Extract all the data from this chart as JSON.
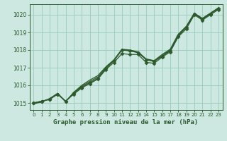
{
  "background_color": "#cce8e0",
  "grid_color": "#99ccbb",
  "line_color": "#2d5a2d",
  "title": "Graphe pression niveau de la mer (hPa)",
  "ylabel_ticks": [
    1015,
    1016,
    1017,
    1018,
    1019,
    1020
  ],
  "xlim": [
    -0.5,
    23.5
  ],
  "ylim": [
    1014.6,
    1020.6
  ],
  "x": [
    0,
    1,
    2,
    3,
    4,
    5,
    6,
    7,
    8,
    9,
    10,
    11,
    12,
    13,
    14,
    15,
    16,
    17,
    18,
    19,
    20,
    21,
    22,
    23
  ],
  "line_main": [
    1015.0,
    1015.1,
    1015.2,
    1015.5,
    1015.1,
    1015.5,
    1015.85,
    1016.1,
    1016.35,
    1016.9,
    1017.3,
    1017.8,
    1017.75,
    1017.75,
    1017.3,
    1017.25,
    1017.6,
    1017.9,
    1018.75,
    1019.2,
    1020.0,
    1019.7,
    1020.0,
    1020.3
  ],
  "line_upper": [
    1015.0,
    1015.1,
    1015.2,
    1015.5,
    1015.1,
    1015.55,
    1015.9,
    1016.15,
    1016.4,
    1016.95,
    1017.4,
    1018.0,
    1017.95,
    1017.85,
    1017.45,
    1017.35,
    1017.65,
    1017.95,
    1018.8,
    1019.3,
    1020.05,
    1019.75,
    1020.05,
    1020.35
  ],
  "line_smooth1": [
    1014.95,
    1015.05,
    1015.25,
    1015.55,
    1015.08,
    1015.6,
    1016.0,
    1016.3,
    1016.55,
    1017.05,
    1017.45,
    1018.05,
    1018.0,
    1017.9,
    1017.5,
    1017.4,
    1017.75,
    1018.05,
    1018.9,
    1019.35,
    1020.1,
    1019.8,
    1020.1,
    1020.4
  ],
  "line_smooth2": [
    1014.98,
    1015.08,
    1015.22,
    1015.52,
    1015.06,
    1015.58,
    1015.95,
    1016.22,
    1016.47,
    1017.0,
    1017.42,
    1018.02,
    1017.97,
    1017.87,
    1017.47,
    1017.37,
    1017.7,
    1018.0,
    1018.85,
    1019.32,
    1020.07,
    1019.77,
    1020.07,
    1020.37
  ],
  "marker": "D",
  "marker_size": 2.5,
  "linewidth": 0.9
}
